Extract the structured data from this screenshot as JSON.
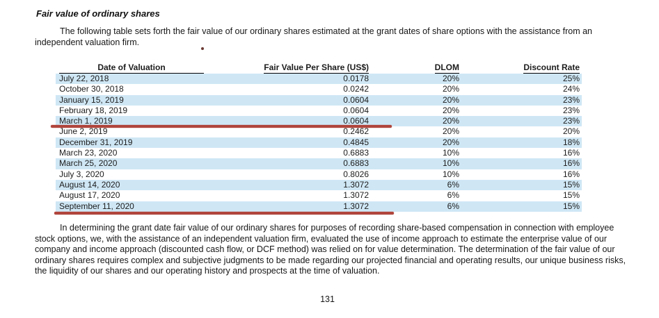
{
  "document": {
    "title": "Fair value of ordinary shares",
    "intro_paragraph": "The following table sets forth the fair value of our ordinary shares estimated at the grant dates of share options with the assistance from an independent valuation firm.",
    "closing_paragraph": "In determining the grant date fair value of our ordinary shares for purposes of recording share-based compensation in connection with employee stock options, we, with the assistance of an independent valuation firm, evaluated the use of income approach to estimate the enterprise value of our company and income approach (discounted cash flow, or DCF method) was relied on for value determination. The determination of the fair value of our ordinary shares requires complex and subjective judgments to be made regarding our projected financial and operating results, our unique business risks, the liquidity of our shares and our operating history and prospects at the time of valuation.",
    "page_number": "131"
  },
  "table": {
    "columns": {
      "date": "Date of Valuation",
      "fair_value": "Fair Value Per Share (US$)",
      "dlom": "DLOM",
      "discount_rate": "Discount Rate"
    },
    "rows": [
      {
        "date": "July 22, 2018",
        "fair_value": "0.0178",
        "dlom": "20%",
        "discount_rate": "25%"
      },
      {
        "date": "October 30, 2018",
        "fair_value": "0.0242",
        "dlom": "20%",
        "discount_rate": "24%"
      },
      {
        "date": "January 15, 2019",
        "fair_value": "0.0604",
        "dlom": "20%",
        "discount_rate": "23%"
      },
      {
        "date": "February 18, 2019",
        "fair_value": "0.0604",
        "dlom": "20%",
        "discount_rate": "23%"
      },
      {
        "date": "March 1, 2019",
        "fair_value": "0.0604",
        "dlom": "20%",
        "discount_rate": "23%"
      },
      {
        "date": "June 2, 2019",
        "fair_value": "0.2462",
        "dlom": "20%",
        "discount_rate": "20%"
      },
      {
        "date": "December 31, 2019",
        "fair_value": "0.4845",
        "dlom": "20%",
        "discount_rate": "18%"
      },
      {
        "date": "March 23, 2020",
        "fair_value": "0.6883",
        "dlom": "10%",
        "discount_rate": "16%"
      },
      {
        "date": "March 25, 2020",
        "fair_value": "0.6883",
        "dlom": "10%",
        "discount_rate": "16%"
      },
      {
        "date": "July 3, 2020",
        "fair_value": "0.8026",
        "dlom": "10%",
        "discount_rate": "16%"
      },
      {
        "date": "August 14, 2020",
        "fair_value": "1.3072",
        "dlom": "6%",
        "discount_rate": "15%"
      },
      {
        "date": "August 17, 2020",
        "fair_value": "1.3072",
        "dlom": "6%",
        "discount_rate": "15%"
      },
      {
        "date": "September 11, 2020",
        "fair_value": "1.3072",
        "dlom": "6%",
        "discount_rate": "15%"
      }
    ]
  },
  "annotations": {
    "underlined_rows": [
      "March 1, 2019",
      "September 11, 2020"
    ],
    "underline_color": "#b0453c",
    "dot_color": "#6b3a33"
  },
  "colors": {
    "row_stripe": "#cfe7f5",
    "text": "#1c1c1c"
  }
}
